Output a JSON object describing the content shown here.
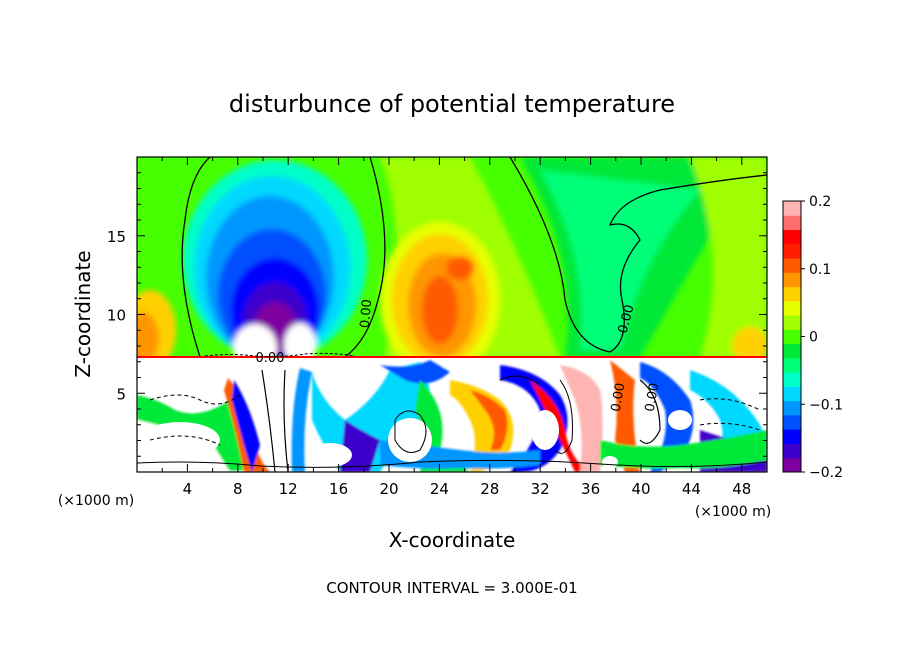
{
  "chart_data": {
    "type": "heatmap",
    "title": "disturbunce of potential temperature",
    "xlabel": "X-coordinate",
    "ylabel": "Z-coordinate",
    "x_unit_left": "(×1000 m)",
    "x_unit_right": "(×1000 m)",
    "xlim": [
      0,
      50
    ],
    "ylim": [
      0,
      20
    ],
    "x_ticks": [
      4,
      8,
      12,
      16,
      20,
      24,
      28,
      32,
      36,
      40,
      44,
      48
    ],
    "x_tick_labels": [
      "4",
      "8",
      "12",
      "16",
      "20",
      "24",
      "28",
      "32",
      "36",
      "40",
      "44",
      "48"
    ],
    "y_ticks": [
      5,
      10,
      15
    ],
    "y_tick_labels": [
      "5",
      "10",
      "15"
    ],
    "colorbar": {
      "range": [
        -0.2,
        0.2
      ],
      "ticks": [
        0.2,
        0.1,
        0,
        -0.1,
        -0.2
      ],
      "tick_labels": [
        "0.2",
        "0.1",
        "0",
        "−0.1",
        "−0.2"
      ],
      "levels": [
        "#7f00a0",
        "#3c00cc",
        "#0000ff",
        "#0050ff",
        "#0096ff",
        "#00d8ff",
        "#00ffc8",
        "#00ff78",
        "#00e838",
        "#46ff00",
        "#a0ff00",
        "#e6ff00",
        "#ffd000",
        "#ff9600",
        "#ff5a00",
        "#ff1e00",
        "#ff0000",
        "#ff6e6e",
        "#ffb4b4"
      ]
    },
    "contour_labels": [
      "0.00",
      "0.00",
      "0.00",
      "0.00",
      "0.00"
    ],
    "annotation": "CONTOUR INTERVAL = 3.000E-01",
    "features": [
      {
        "name": "cold-anomaly",
        "x": 11,
        "z": 12,
        "value": -0.2
      },
      {
        "name": "warm-anomaly",
        "x": 24,
        "z": 11,
        "value": 0.14
      },
      {
        "name": "warm-anomaly-upper",
        "x": 26,
        "z": 13.5,
        "value": 0.1
      },
      {
        "name": "warm-left-edge",
        "x": 0.8,
        "z": 9.5,
        "value": 0.12
      },
      {
        "name": "cool-region",
        "x": 38,
        "z": 12,
        "value": -0.05
      }
    ],
    "inversion_layer_z": 7.2
  }
}
